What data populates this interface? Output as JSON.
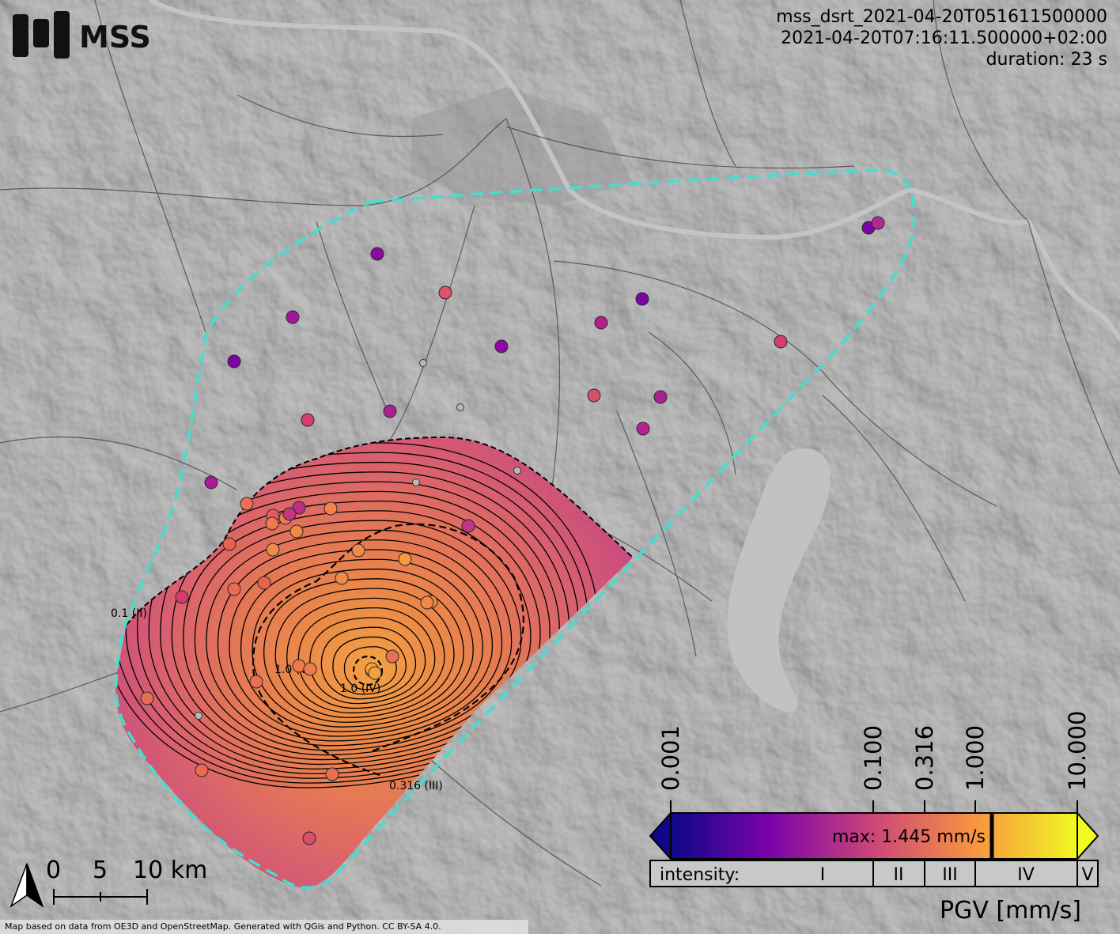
{
  "header": {
    "event_id": "mss_dsrt_2021-04-20T051611500000",
    "event_time": "2021-04-20T07:16:11.500000+02:00",
    "duration": "duration: 23 s"
  },
  "logo": {
    "text": "MSS"
  },
  "colors": {
    "outline": "#40e0d0",
    "contour": "#000000",
    "map_bg": "#7a7a7a",
    "lake": "#c2c2c2"
  },
  "contour_labels": [
    "0.1 (II)",
    "1.0 (V)",
    "1.0 (IV)",
    "0.316 (III)"
  ],
  "stations": [
    {
      "color": "#8a0aa0"
    },
    {
      "color": "#e0536a"
    },
    {
      "color": "#7a04a4"
    },
    {
      "color": "#a0179e"
    },
    {
      "color": "#b51f8c"
    },
    {
      "color": "#7a04a4"
    },
    {
      "color": "#d33c74"
    },
    {
      "color": "#8c0aa0"
    },
    {
      "color": "#7d03a8"
    },
    {
      "color": "#b12a90"
    },
    {
      "color": "#ad1e92"
    },
    {
      "color": "#d33c74"
    },
    {
      "color": "#ad1e92"
    },
    {
      "color": "#d84f6a"
    },
    {
      "color": "#b52290"
    },
    {
      "color": "#aa1a96"
    },
    {
      "color": "#f68246"
    },
    {
      "color": "#ef6f56"
    },
    {
      "color": "#f07a4c"
    },
    {
      "color": "#e25c64"
    },
    {
      "color": "#c02d87"
    },
    {
      "color": "#f07a4c"
    },
    {
      "color": "#f48849"
    },
    {
      "color": "#f28a47"
    },
    {
      "color": "#e8644f"
    },
    {
      "color": "#f48849"
    },
    {
      "color": "#f59a3e"
    },
    {
      "color": "#f08a48"
    },
    {
      "color": "#ea6d52"
    },
    {
      "color": "#e8644f"
    },
    {
      "color": "#d83c6e"
    },
    {
      "color": "#f48849"
    },
    {
      "color": "#f3874b"
    },
    {
      "color": "#ed6e53"
    },
    {
      "color": "#c53585"
    },
    {
      "color": "#ec6f50"
    },
    {
      "color": "#f48849"
    },
    {
      "color": "#ee7a4c"
    },
    {
      "color": "#ea6d52"
    },
    {
      "color": "#f9a33a"
    },
    {
      "color": "#f7a03b"
    },
    {
      "color": "#ed6a52"
    },
    {
      "color": "#ec6f50"
    },
    {
      "color": "#d84f6a"
    },
    {
      "color": "#ed7c4c"
    },
    {
      "color": "#c53585"
    }
  ],
  "legend": {
    "ticks": [
      "0.001",
      "0.100",
      "0.316",
      "1.000",
      "10.000"
    ],
    "max_label": "max: 1.445 mm/s",
    "intensity_label": "intensity:",
    "intensity_classes": [
      "I",
      "II",
      "III",
      "IV",
      "V"
    ],
    "title": "PGV [mm/s]",
    "max_value": 1.445
  },
  "scalebar": {
    "labels": [
      "0",
      "5",
      "10 km"
    ]
  },
  "footer": "Map based on data from OE3D and OpenStreetMap. Generated with QGis and Python. CC BY-SA 4.0."
}
